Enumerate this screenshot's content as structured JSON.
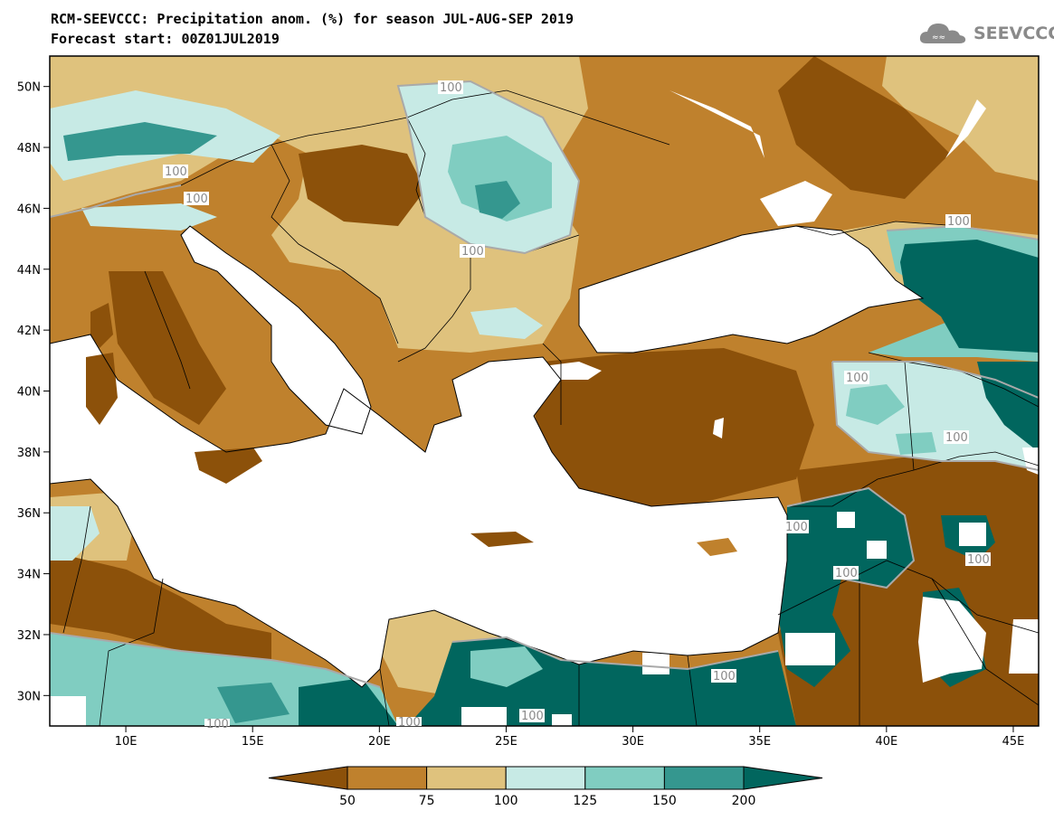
{
  "title": {
    "line1": "RCM-SEEVCCC: Precipitation anom. (%) for season JUL-AUG-SEP 2019",
    "line2": "Forecast start: 00Z01JUL2019"
  },
  "logo": {
    "text": "SEEVCCC",
    "icon": "cloud-icon"
  },
  "map": {
    "lon_range": [
      7,
      46
    ],
    "lat_range": [
      29,
      51
    ],
    "lon_ticks": [
      "10E",
      "15E",
      "20E",
      "25E",
      "30E",
      "35E",
      "40E",
      "45E"
    ],
    "lat_ticks": [
      "50N",
      "48N",
      "46N",
      "44N",
      "42N",
      "40N",
      "38N",
      "36N",
      "34N",
      "32N",
      "30N"
    ],
    "contour_labels": [
      "100",
      "100",
      "100",
      "100",
      "100",
      "100",
      "100",
      "100",
      "100",
      "100",
      "100",
      "100",
      "100",
      "100"
    ]
  },
  "colorbar": {
    "labels": [
      "50",
      "75",
      "100",
      "125",
      "150",
      "200"
    ],
    "colors": [
      "#8c510a",
      "#bf812d",
      "#dfc27d",
      "#c7eae5",
      "#80cdc1",
      "#35978f",
      "#01665e"
    ]
  },
  "colors": {
    "dry_strong": "#8c510a",
    "dry": "#bf812d",
    "dry_light": "#dfc27d",
    "wet_light": "#c7eae5",
    "wet": "#80cdc1",
    "wet_mid": "#35978f",
    "wet_strong": "#01665e",
    "sea": "#ffffff"
  }
}
